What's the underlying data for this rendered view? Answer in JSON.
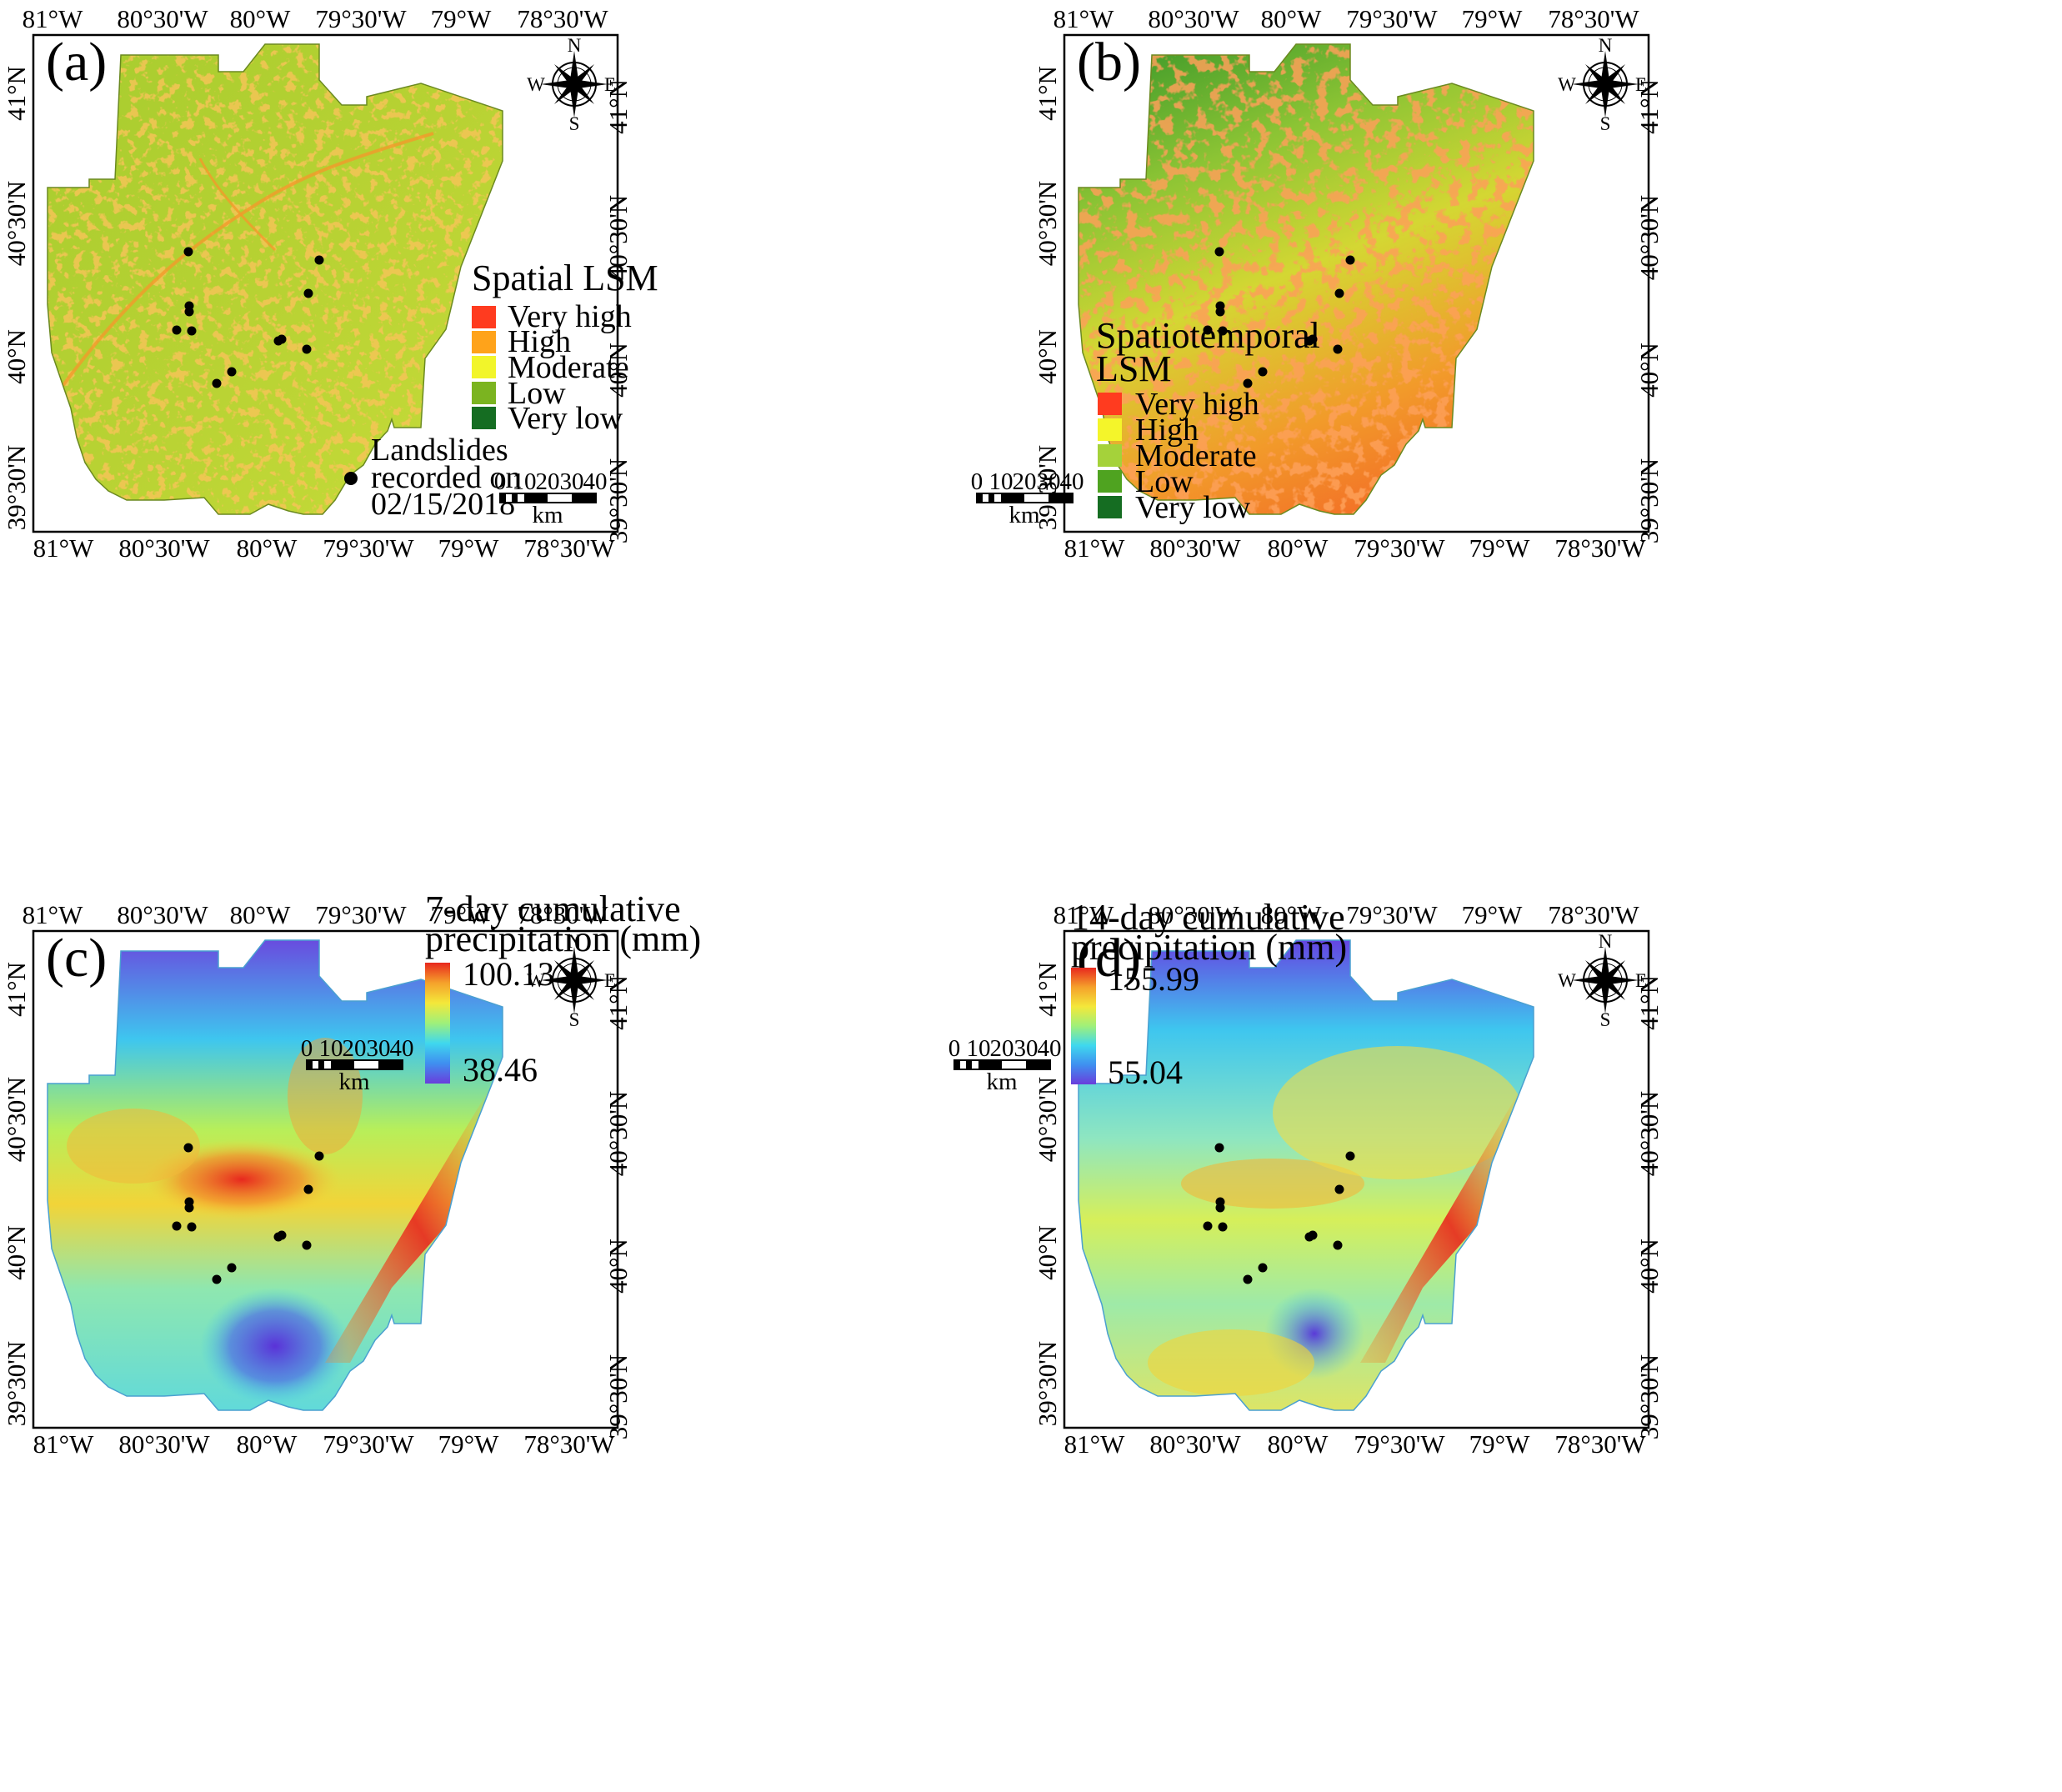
{
  "axes": {
    "top_longitudes": [
      "81°W",
      "80°30'W",
      "80°W",
      "79°30'W",
      "79°W",
      "78°30'W"
    ],
    "bottom_longitudes": [
      "81°W",
      "80°30'W",
      "80°W",
      "79°30'W",
      "79°W",
      "78°30'W"
    ],
    "latitudes": [
      "41°N",
      "40°30'N",
      "40°N",
      "39°30'N"
    ]
  },
  "compass": {
    "n": "N",
    "s": "S",
    "e": "E",
    "w": "W"
  },
  "scale_bar": {
    "ticks": [
      "0",
      "10",
      "20",
      "30",
      "40"
    ],
    "unit": "km"
  },
  "panels": [
    {
      "letter": "(a)",
      "legend_title_lines": [
        "Spatial LSM"
      ],
      "classes": [
        {
          "label": "Very high",
          "color": "#ff3b1f"
        },
        {
          "label": "High",
          "color": "#ffa31a"
        },
        {
          "label": "Moderate",
          "color": "#f2f52a"
        },
        {
          "label": "Low",
          "color": "#7bb420"
        },
        {
          "label": "Very low",
          "color": "#156d22"
        }
      ],
      "landslide_legend_lines": [
        "Landslides",
        "recorded on",
        "02/15/2018"
      ]
    },
    {
      "letter": "(b)",
      "legend_title_lines": [
        "Spatiotemporal",
        "LSM"
      ],
      "classes": [
        {
          "label": "Very high",
          "color": "#ff3b1f"
        },
        {
          "label": "High",
          "color": "#f4f52a"
        },
        {
          "label": "Moderate",
          "color": "#a5d23a"
        },
        {
          "label": "Low",
          "color": "#4fa320"
        },
        {
          "label": "Very low",
          "color": "#156d22"
        }
      ]
    },
    {
      "letter": "(c)",
      "legend_title_lines": [
        "7-day cumulative",
        "precipitation (mm)"
      ],
      "range": {
        "max": "100.13",
        "min": "38.46"
      }
    },
    {
      "letter": "(d)",
      "legend_title_lines": [
        "14-day cumulative",
        "precipitation (mm)"
      ],
      "range": {
        "max": "155.99",
        "min": "55.04"
      }
    }
  ],
  "map_colors": {
    "lsm_spatial_base": "#b8d233",
    "lsm_spatiotemporal_base": "#f48a2a",
    "precip_high": "#e8281e",
    "precip_low": "#6a3ddc"
  },
  "landslide_marker_color": "#000000"
}
